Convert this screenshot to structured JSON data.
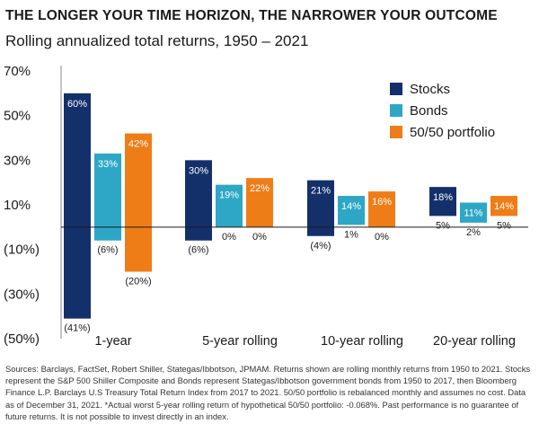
{
  "title": "THE LONGER YOUR TIME HORIZON, THE NARROWER YOUR OUTCOME",
  "subtitle": "Rolling annualized total returns, 1950 – 2021",
  "footnote": "Sources: Barclays, FactSet, Robert Shiller, Stategas/Ibbotson, JPMAM. Returns shown are rolling monthly returns from 1950 to 2021. Stocks represent the S&P 500 Shiller Composite and Bonds represent Stategas/Ibbotson government bonds from 1950 to 2017, then Bloomberg Finance L.P. Barclays U.S Treasury Total Return Index from 2017 to 2021. 50/50 portfolio is rebalanced monthly and assumes no cost. Data as of December 31, 2021. *Actual worst 5-year rolling return of hypothetical 50/50 portfolio: -0.068%. Past performance is no guarantee of future returns. It is not possible to invest directly in an index.",
  "chart_data": {
    "type": "bar",
    "subtype": "floating-range",
    "categories": [
      "1-year",
      "5-year rolling",
      "10-year rolling",
      "20-year rolling"
    ],
    "ylim": [
      -50,
      70
    ],
    "yticks": [
      70,
      50,
      30,
      10,
      -10,
      -30,
      -50
    ],
    "ytick_labels": [
      "70%",
      "50%",
      "30%",
      "10%",
      "(10%)",
      "(30%)",
      "(50%)"
    ],
    "grid": false,
    "legend_position": "top-right",
    "series": [
      {
        "name": "Stocks",
        "color": "#14306b",
        "max": [
          60,
          30,
          21,
          18
        ],
        "min": [
          -41,
          -6,
          -4,
          5
        ],
        "max_labels": [
          "60%",
          "30%",
          "21%",
          "18%"
        ],
        "min_labels": [
          "(41%)",
          "(6%)",
          "(4%)",
          "5%"
        ]
      },
      {
        "name": "Bonds",
        "color": "#2ea7c6",
        "max": [
          33,
          19,
          14,
          11
        ],
        "min": [
          -6,
          0,
          1,
          2
        ],
        "max_labels": [
          "33%",
          "19%",
          "14%",
          "11%"
        ],
        "min_labels": [
          "(6%)",
          "0%",
          "1%",
          "2%"
        ]
      },
      {
        "name": "50/50 portfolio",
        "color": "#ef7d17",
        "max": [
          42,
          22,
          16,
          14
        ],
        "min": [
          -20,
          0,
          0,
          5
        ],
        "max_labels": [
          "42%",
          "22%",
          "16%",
          "14%"
        ],
        "min_labels": [
          "(20%)",
          "0%",
          "0%",
          "5%"
        ]
      }
    ]
  }
}
